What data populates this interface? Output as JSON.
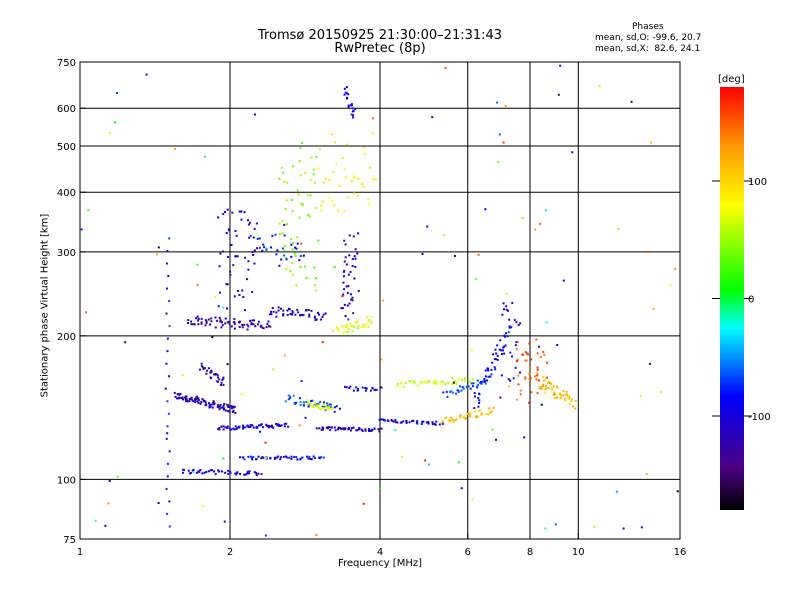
{
  "header": {
    "title_line1": "Tromsø 20150925 21:30:00–21:31:43",
    "title_line2": "RwPretec (8p)"
  },
  "phases": {
    "heading": "Phases",
    "line_o": "mean, sd,O: -99.6, 20.7",
    "line_x": "mean, sd,X:  82.6, 24.1"
  },
  "chart_data": {
    "type": "scatter",
    "xlabel": "Frequency [MHz]",
    "ylabel": "Stationary phase Virtual Height [km]",
    "x_scale": "log",
    "y_scale": "log",
    "xlim": [
      1,
      16
    ],
    "ylim": [
      75,
      750
    ],
    "x_ticks": [
      1,
      2,
      4,
      6,
      8,
      10,
      16
    ],
    "x_tick_labels": [
      "1",
      "2",
      "4",
      "6",
      "8",
      "10",
      "16"
    ],
    "y_ticks": [
      75,
      100,
      200,
      300,
      400,
      500,
      600,
      750
    ],
    "y_tick_labels": [
      "75",
      "100",
      "200",
      "300",
      "400",
      "500",
      "600",
      "750"
    ],
    "grid_x": [
      2,
      4,
      6,
      8,
      10
    ],
    "grid_y": [
      100,
      200,
      300,
      400,
      500,
      600
    ],
    "colorbar": {
      "title": "[deg]",
      "range": [
        -180,
        180
      ],
      "ticks": [
        100,
        0,
        -100
      ],
      "tick_labels": [
        "100",
        "0",
        "-100"
      ]
    },
    "series": [
      {
        "traces": [
          {
            "x0": 1.55,
            "x1": 2.05,
            "y0": 150,
            "y1": 140,
            "phase": -125,
            "n": 90,
            "spread": 0.018
          },
          {
            "x0": 1.75,
            "x1": 1.95,
            "y0": 172,
            "y1": 160,
            "phase": -130,
            "n": 30,
            "spread": 0.02
          },
          {
            "x0": 1.9,
            "x1": 2.6,
            "y0": 128,
            "y1": 130,
            "phase": -110,
            "n": 60,
            "spread": 0.01
          },
          {
            "x0": 1.6,
            "x1": 2.3,
            "y0": 104,
            "y1": 103,
            "phase": -115,
            "n": 45,
            "spread": 0.01
          },
          {
            "x0": 2.1,
            "x1": 3.1,
            "y0": 111,
            "y1": 111,
            "phase": -100,
            "n": 50,
            "spread": 0.008
          },
          {
            "x0": 1.65,
            "x1": 2.4,
            "y0": 215,
            "y1": 210,
            "phase": -130,
            "n": 70,
            "spread": 0.025
          },
          {
            "x0": 2.4,
            "x1": 3.1,
            "y0": 225,
            "y1": 220,
            "phase": -115,
            "n": 45,
            "spread": 0.025
          },
          {
            "x0": 1.9,
            "x1": 2.25,
            "y0": 360,
            "y1": 230,
            "phase": -120,
            "n": 50,
            "spread": 0.05
          },
          {
            "x0": 2.5,
            "x1": 3.0,
            "y0": 480,
            "y1": 250,
            "phase": 40,
            "n": 60,
            "spread": 0.07
          },
          {
            "x0": 2.6,
            "x1": 3.3,
            "y0": 148,
            "y1": 140,
            "phase": -80,
            "n": 40,
            "spread": 0.02
          },
          {
            "x0": 2.85,
            "x1": 3.2,
            "y0": 145,
            "y1": 140,
            "phase": 70,
            "n": 30,
            "spread": 0.012
          },
          {
            "x0": 3.0,
            "x1": 4.0,
            "y0": 128,
            "y1": 127,
            "phase": -120,
            "n": 50,
            "spread": 0.008
          },
          {
            "x0": 4.0,
            "x1": 5.3,
            "y0": 133,
            "y1": 131,
            "phase": -110,
            "n": 40,
            "spread": 0.008
          },
          {
            "x0": 3.25,
            "x1": 3.85,
            "y0": 205,
            "y1": 215,
            "phase": 70,
            "n": 35,
            "spread": 0.025
          },
          {
            "x0": 3.35,
            "x1": 3.6,
            "y0": 320,
            "y1": 230,
            "phase": -120,
            "n": 40,
            "spread": 0.06
          },
          {
            "x0": 3.4,
            "x1": 3.55,
            "y0": 650,
            "y1": 580,
            "phase": -110,
            "n": 20,
            "spread": 0.03
          },
          {
            "x0": 3.0,
            "x1": 3.9,
            "y0": 500,
            "y1": 380,
            "phase": 80,
            "n": 40,
            "spread": 0.09
          },
          {
            "x0": 2.2,
            "x1": 2.8,
            "y0": 320,
            "y1": 290,
            "phase": -100,
            "n": 30,
            "spread": 0.05
          },
          {
            "x0": 3.4,
            "x1": 4.0,
            "y0": 155,
            "y1": 155,
            "phase": -110,
            "n": 20,
            "spread": 0.01
          },
          {
            "x0": 4.3,
            "x1": 6.2,
            "y0": 158,
            "y1": 162,
            "phase": 60,
            "n": 40,
            "spread": 0.015
          },
          {
            "x0": 5.4,
            "x1": 6.6,
            "y0": 150,
            "y1": 162,
            "phase": -80,
            "n": 30,
            "spread": 0.015
          },
          {
            "x0": 5.3,
            "x1": 6.8,
            "y0": 132,
            "y1": 140,
            "phase": 110,
            "n": 40,
            "spread": 0.015
          },
          {
            "x0": 6.2,
            "x1": 7.2,
            "y0": 145,
            "y1": 200,
            "phase": -100,
            "n": 45,
            "spread": 0.04
          },
          {
            "x0": 7.0,
            "x1": 7.6,
            "y0": 160,
            "y1": 230,
            "phase": -110,
            "n": 30,
            "spread": 0.06
          },
          {
            "x0": 7.5,
            "x1": 8.6,
            "y0": 190,
            "y1": 150,
            "phase": 150,
            "n": 45,
            "spread": 0.05
          },
          {
            "x0": 8.4,
            "x1": 9.8,
            "y0": 160,
            "y1": 145,
            "phase": 115,
            "n": 45,
            "spread": 0.035
          },
          {
            "x0": 1.5,
            "x1": 1.5,
            "y0": 75,
            "y1": 320,
            "phase": -100,
            "n": 25,
            "spread": 0.0
          }
        ]
      }
    ]
  }
}
